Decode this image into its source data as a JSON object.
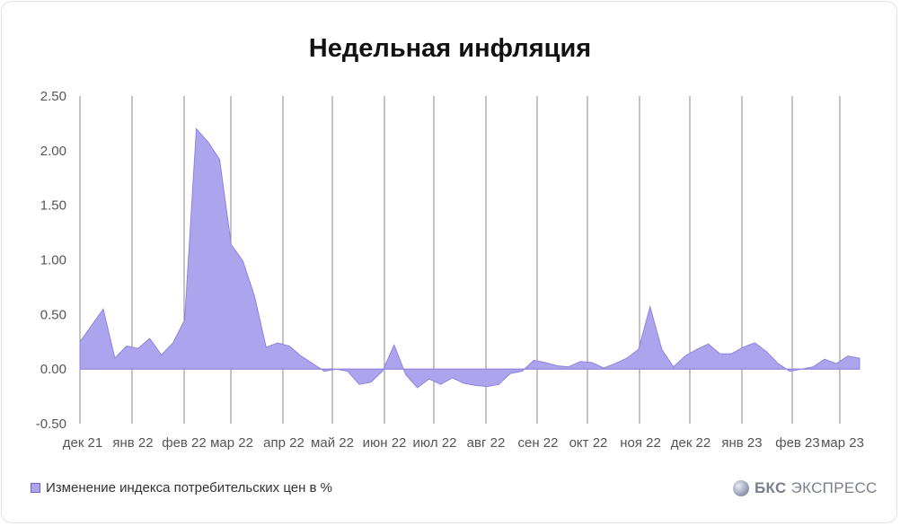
{
  "chart_data": {
    "type": "area",
    "title": "Недельная инфляция",
    "xlabel": "",
    "ylabel": "",
    "ylim": [
      -0.5,
      2.5
    ],
    "yticks": [
      "2.50",
      "2.00",
      "1.50",
      "1.00",
      "0.50",
      "0.00",
      "-0.50"
    ],
    "xtick_labels": [
      "дек 21",
      "янв 22",
      "фев 22",
      "мар 22",
      "апр 22",
      "май 22",
      "июн 22",
      "июл 22",
      "авг 22",
      "сен 22",
      "окт 22",
      "ноя 22",
      "дек 22",
      "янв 23",
      "фев 23",
      "мар 23"
    ],
    "grid": "vertical",
    "legend_position": "bottom-left",
    "series": [
      {
        "name": "Изменение индекса потребительских цен в %",
        "color": "#ada4ee",
        "values": [
          0.25,
          0.4,
          0.55,
          0.1,
          0.21,
          0.19,
          0.28,
          0.13,
          0.24,
          0.45,
          2.2,
          2.08,
          1.92,
          1.14,
          0.99,
          0.67,
          0.2,
          0.24,
          0.21,
          0.12,
          0.05,
          -0.02,
          0.0,
          -0.02,
          -0.14,
          -0.12,
          -0.02,
          0.22,
          -0.05,
          -0.17,
          -0.09,
          -0.14,
          -0.08,
          -0.13,
          -0.15,
          -0.16,
          -0.14,
          -0.04,
          -0.02,
          0.08,
          0.06,
          0.03,
          0.02,
          0.07,
          0.06,
          0.01,
          0.05,
          0.1,
          0.18,
          0.57,
          0.18,
          0.02,
          0.12,
          0.18,
          0.23,
          0.14,
          0.14,
          0.2,
          0.24,
          0.16,
          0.05,
          -0.02,
          0.0,
          0.02,
          0.09,
          0.05,
          0.12,
          0.1
        ]
      }
    ]
  },
  "legend": {
    "label": "Изменение индекса потребительских цен в %",
    "swatch_color": "#ada4ee"
  },
  "logo": {
    "mark": "БКС",
    "text": "ЭКСПРЕСС"
  }
}
